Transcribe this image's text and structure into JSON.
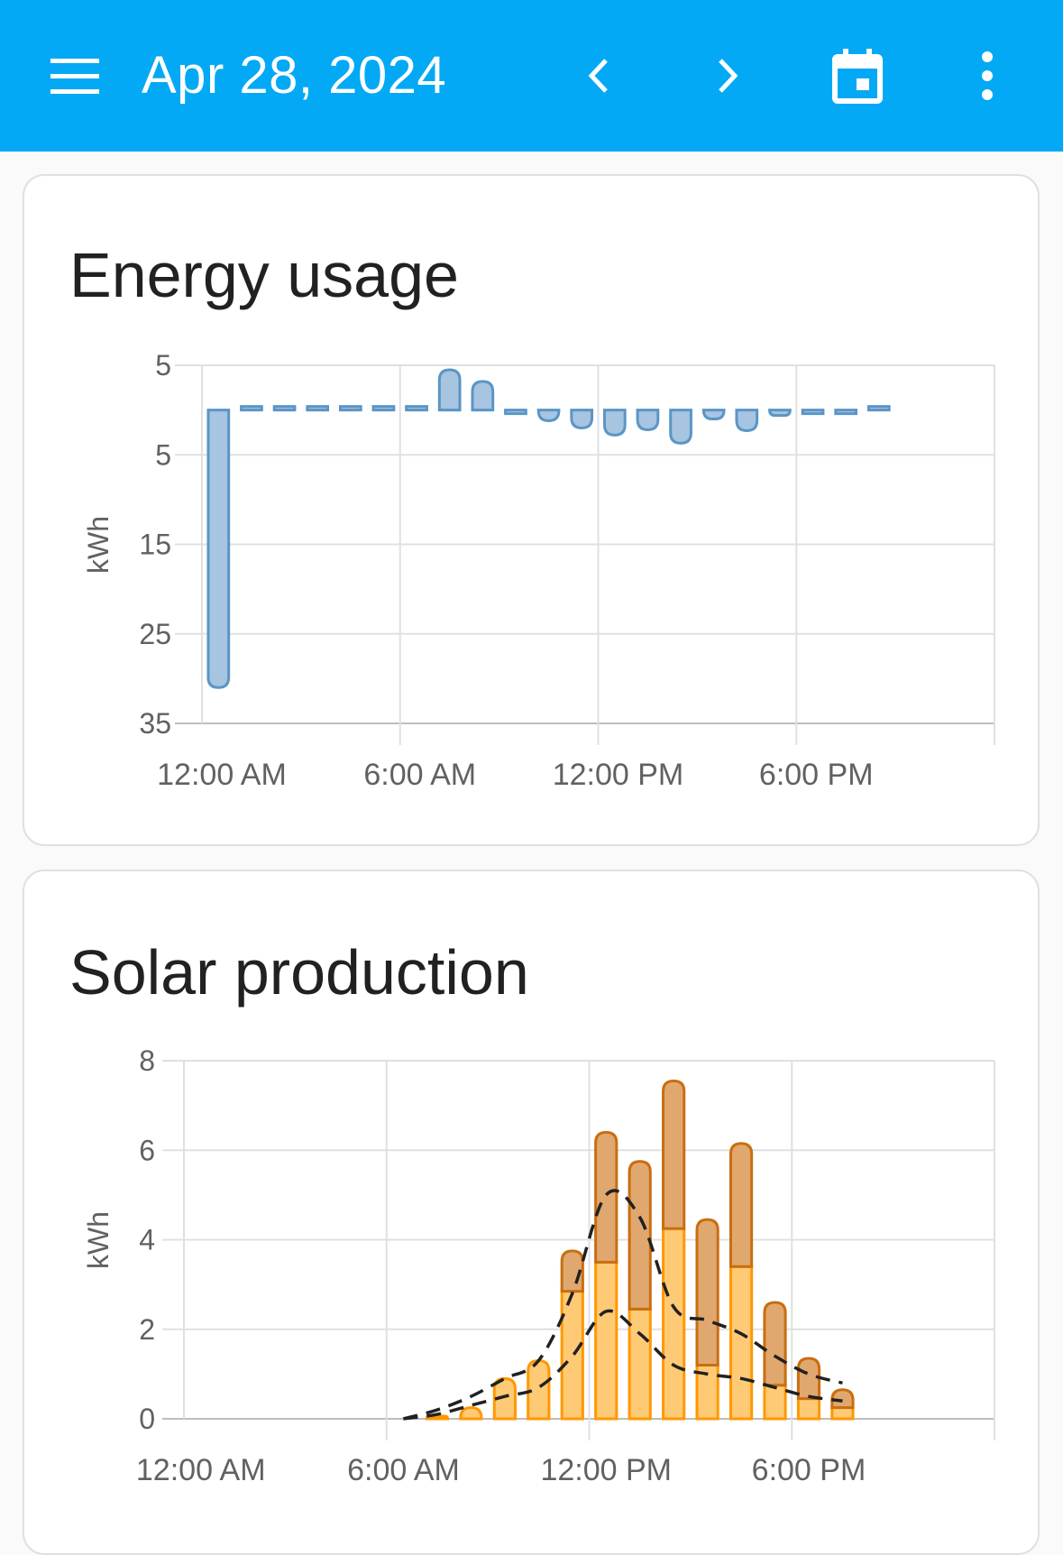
{
  "header": {
    "date": "Apr 28, 2024",
    "icons": [
      "menu-icon",
      "chevron-left-icon",
      "chevron-right-icon",
      "calendar-icon",
      "more-vert-icon"
    ],
    "color": "#03a9f4"
  },
  "energy_card": {
    "title": "Energy usage"
  },
  "solar_card": {
    "title": "Solar production"
  },
  "chart_data": [
    {
      "type": "bar",
      "title": "Energy usage",
      "ylabel": "kWh",
      "ytick_labels": [
        "5",
        "5",
        "15",
        "25",
        "35"
      ],
      "ylim": [
        -35,
        5
      ],
      "y_axis_inverted": true,
      "xtick_labels": [
        "12:00 AM",
        "6:00 AM",
        "12:00 PM",
        "6:00 PM"
      ],
      "x": [
        "00:00",
        "01:00",
        "02:00",
        "03:00",
        "04:00",
        "05:00",
        "06:00",
        "07:00",
        "08:00",
        "09:00",
        "10:00",
        "11:00",
        "12:00",
        "13:00",
        "14:00",
        "15:00",
        "16:00",
        "17:00",
        "18:00",
        "19:00",
        "20:00"
      ],
      "series": [
        {
          "values": [
            -31,
            0.3,
            0.2,
            0.4,
            0.3,
            0.3,
            0.5,
            4.5,
            3.2,
            -0.3,
            -1.2,
            -2.0,
            -2.8,
            -2.2,
            -3.7,
            -1.0,
            -2.3,
            -0.6,
            -0.3,
            -0.2,
            0.2
          ]
        }
      ],
      "colors": {
        "fill": "#a7c4e0",
        "stroke": "#5b95c6"
      },
      "grid": true
    },
    {
      "type": "bar",
      "stacked": true,
      "title": "Solar production",
      "ylabel": "kWh",
      "ylim": [
        0,
        8
      ],
      "yticks": [
        0,
        2,
        4,
        6,
        8
      ],
      "xtick_labels": [
        "12:00 AM",
        "6:00 AM",
        "12:00 PM",
        "6:00 PM"
      ],
      "x": [
        "07:00",
        "08:00",
        "09:00",
        "10:00",
        "11:00",
        "12:00",
        "13:00",
        "14:00",
        "15:00",
        "16:00",
        "17:00",
        "18:00",
        "19:00"
      ],
      "series": [
        {
          "values": [
            0.05,
            0.25,
            0.9,
            1.3,
            2.85,
            3.5,
            2.45,
            4.25,
            1.2,
            3.4,
            0.75,
            0.45,
            0.25
          ],
          "color": "#ffca75",
          "stroke": "#ff9800"
        },
        {
          "values": [
            0,
            0,
            0,
            0,
            0.9,
            2.9,
            3.3,
            3.3,
            3.25,
            2.75,
            1.85,
            0.9,
            0.4
          ],
          "color": "#e0a86e",
          "stroke": "#c96e10"
        }
      ],
      "forecast_lines": [
        {
          "x": [
            "06:00",
            "07:00",
            "08:00",
            "09:00",
            "10:00",
            "11:00",
            "12:00",
            "13:00",
            "14:00",
            "15:00",
            "16:00",
            "17:00",
            "18:00",
            "19:00"
          ],
          "values": [
            0,
            0.2,
            0.5,
            0.9,
            1.3,
            2.8,
            5.0,
            4.5,
            2.5,
            2.2,
            1.9,
            1.4,
            1.0,
            0.8
          ],
          "style": "dashed"
        },
        {
          "x": [
            "06:00",
            "07:00",
            "08:00",
            "09:00",
            "10:00",
            "11:00",
            "12:00",
            "13:00",
            "14:00",
            "15:00",
            "16:00",
            "17:00",
            "18:00",
            "19:00"
          ],
          "values": [
            0,
            0.1,
            0.3,
            0.5,
            0.7,
            1.4,
            2.4,
            1.9,
            1.2,
            1.0,
            0.9,
            0.7,
            0.5,
            0.4
          ],
          "style": "dashed"
        }
      ],
      "grid": true
    }
  ]
}
